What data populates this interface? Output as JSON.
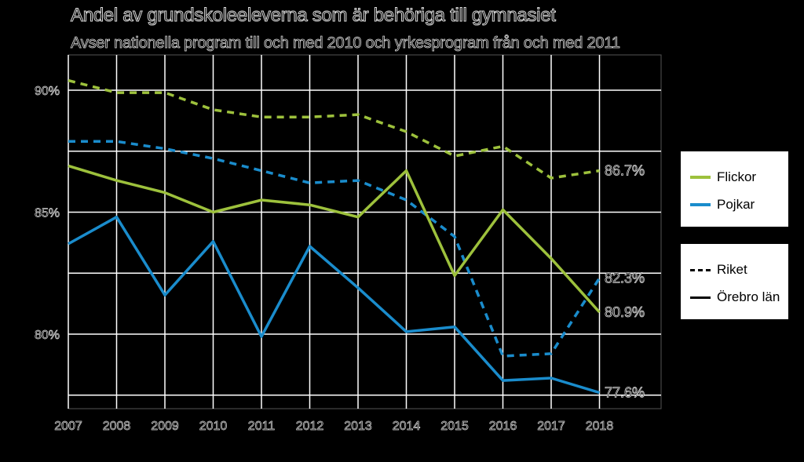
{
  "title": "Andel av grundskoleeleverna som är behöriga till gymnasiet",
  "subtitle": "Avser nationella program till och med 2010 och yrkesprogram från och med 2011",
  "colors": {
    "flickor": "#9dc13c",
    "pojkar": "#1a8ccc",
    "background": "#000000",
    "grid": "#ffffff"
  },
  "legend_gender": [
    {
      "name": "Flickor",
      "color": "#9dc13c"
    },
    {
      "name": "Pojkar",
      "color": "#1a8ccc"
    }
  ],
  "legend_region": [
    {
      "name": "Riket",
      "style": "dashed"
    },
    {
      "name": "Örebro län",
      "style": "solid"
    }
  ],
  "chart_data": {
    "type": "line",
    "title": "Andel av grundskoleeleverna som är behöriga till gymnasiet",
    "subtitle": "Avser nationella program till och med 2010 och yrkesprogram från och med 2011",
    "x": [
      "2007",
      "2008",
      "2009",
      "2010",
      "2011",
      "2012",
      "2013",
      "2014",
      "2015",
      "2016",
      "2017",
      "2018"
    ],
    "y_ticks": [
      "90%",
      "85%",
      "80%"
    ],
    "ylim": [
      77.5,
      91.5
    ],
    "grid": true,
    "series": [
      {
        "name": "Flickor",
        "group": "Riket",
        "style": "dashed",
        "color": "#9dc13c",
        "values": [
          90.4,
          89.9,
          89.9,
          89.2,
          88.9,
          88.9,
          89.0,
          88.3,
          87.3,
          87.7,
          86.4,
          86.7
        ]
      },
      {
        "name": "Pojkar",
        "group": "Riket",
        "style": "dashed",
        "color": "#1a8ccc",
        "values": [
          87.9,
          87.9,
          87.6,
          87.2,
          86.7,
          86.2,
          86.3,
          85.5,
          84.0,
          79.1,
          79.2,
          82.3
        ]
      },
      {
        "name": "Flickor",
        "group": "Örebro län",
        "style": "solid",
        "color": "#9dc13c",
        "values": [
          86.9,
          86.3,
          85.8,
          85.0,
          85.5,
          85.3,
          84.8,
          86.7,
          82.4,
          85.1,
          83.1,
          80.9
        ]
      },
      {
        "name": "Pojkar",
        "group": "Örebro län",
        "style": "solid",
        "color": "#1a8ccc",
        "values": [
          83.7,
          84.8,
          81.6,
          83.8,
          79.9,
          83.6,
          81.9,
          80.1,
          80.3,
          78.1,
          78.2,
          77.6
        ]
      }
    ],
    "end_labels": [
      "86.7%",
      "82.3%",
      "80.9%",
      "77.6%"
    ]
  }
}
